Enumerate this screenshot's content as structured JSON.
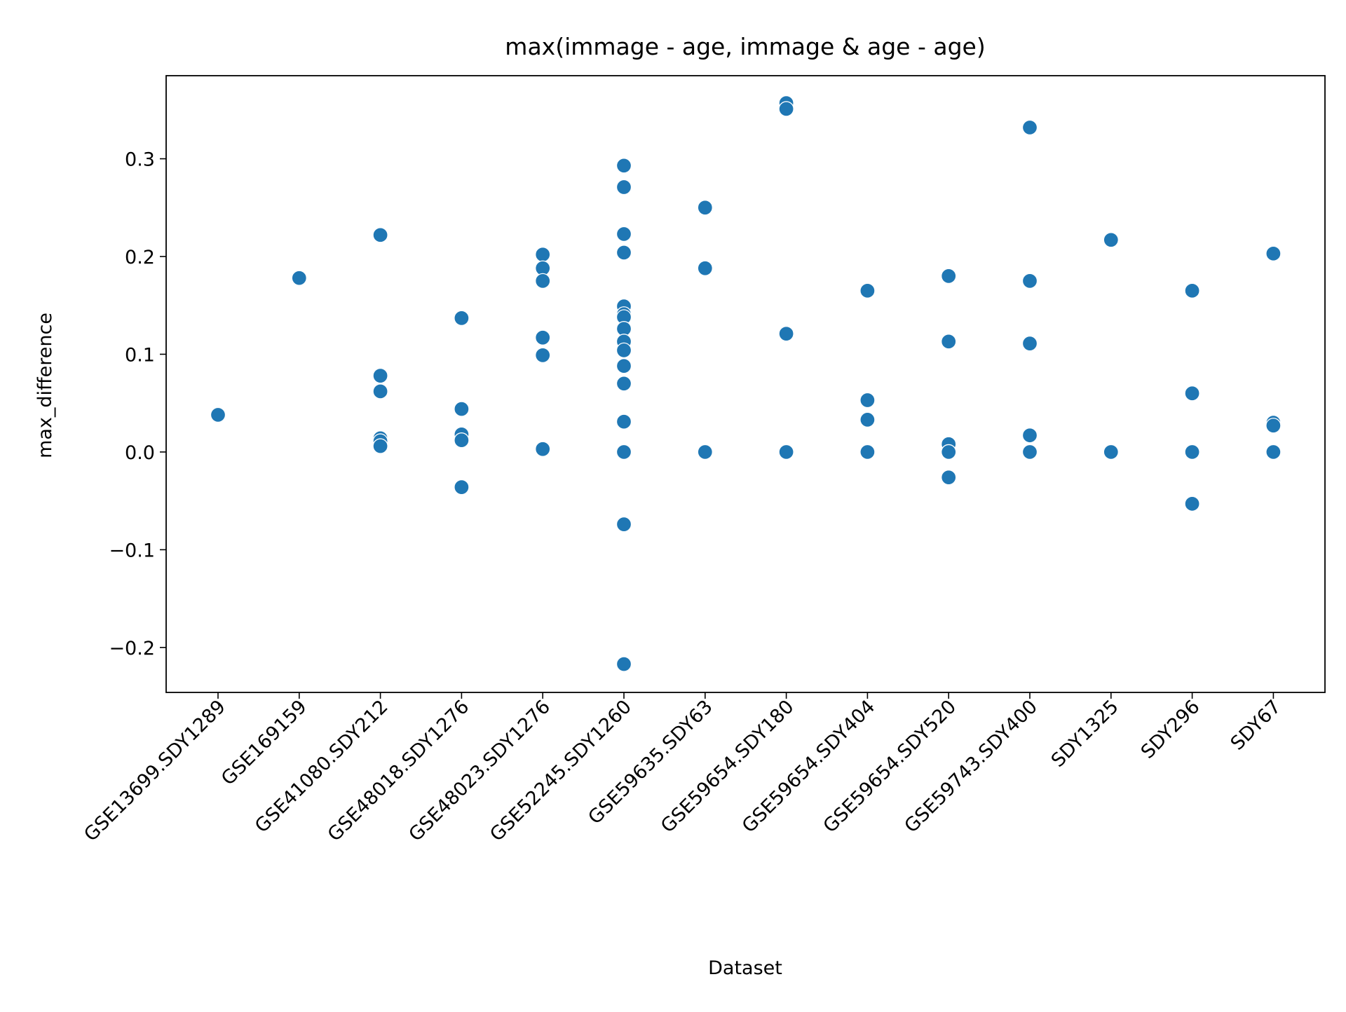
{
  "chart_data": {
    "type": "scatter",
    "title": "max(immage - age, immage & age - age)",
    "xlabel": "Dataset",
    "ylabel": "max_difference",
    "categories": [
      "GSE13699.SDY1289",
      "GSE169159",
      "GSE41080.SDY212",
      "GSE48018.SDY1276",
      "GSE48023.SDY1276",
      "GSE52245.SDY1260",
      "GSE59635.SDY63",
      "GSE59654.SDY180",
      "GSE59654.SDY404",
      "GSE59654.SDY520",
      "GSE59743.SDY400",
      "SDY1325",
      "SDY296",
      "SDY67"
    ],
    "y_ticks": [
      -0.2,
      -0.1,
      0.0,
      0.1,
      0.2,
      0.3
    ],
    "y_tick_labels": [
      "−0.2",
      "−0.1",
      "0.0",
      "0.1",
      "0.2",
      "0.3"
    ],
    "ylim": [
      -0.246,
      0.385
    ],
    "grid": false,
    "point_color": "#1f77b4",
    "points": [
      {
        "x": "GSE13699.SDY1289",
        "y": 0.038
      },
      {
        "x": "GSE169159",
        "y": 0.178
      },
      {
        "x": "GSE41080.SDY212",
        "y": 0.222
      },
      {
        "x": "GSE41080.SDY212",
        "y": 0.078
      },
      {
        "x": "GSE41080.SDY212",
        "y": 0.062
      },
      {
        "x": "GSE41080.SDY212",
        "y": 0.014
      },
      {
        "x": "GSE41080.SDY212",
        "y": 0.011
      },
      {
        "x": "GSE41080.SDY212",
        "y": 0.006
      },
      {
        "x": "GSE48018.SDY1276",
        "y": 0.137
      },
      {
        "x": "GSE48018.SDY1276",
        "y": 0.044
      },
      {
        "x": "GSE48018.SDY1276",
        "y": 0.018
      },
      {
        "x": "GSE48018.SDY1276",
        "y": 0.012
      },
      {
        "x": "GSE48018.SDY1276",
        "y": -0.036
      },
      {
        "x": "GSE48023.SDY1276",
        "y": 0.202
      },
      {
        "x": "GSE48023.SDY1276",
        "y": 0.188
      },
      {
        "x": "GSE48023.SDY1276",
        "y": 0.175
      },
      {
        "x": "GSE48023.SDY1276",
        "y": 0.117
      },
      {
        "x": "GSE48023.SDY1276",
        "y": 0.099
      },
      {
        "x": "GSE48023.SDY1276",
        "y": 0.003
      },
      {
        "x": "GSE52245.SDY1260",
        "y": 0.293
      },
      {
        "x": "GSE52245.SDY1260",
        "y": 0.271
      },
      {
        "x": "GSE52245.SDY1260",
        "y": 0.223
      },
      {
        "x": "GSE52245.SDY1260",
        "y": 0.204
      },
      {
        "x": "GSE52245.SDY1260",
        "y": 0.149
      },
      {
        "x": "GSE52245.SDY1260",
        "y": 0.141
      },
      {
        "x": "GSE52245.SDY1260",
        "y": 0.138
      },
      {
        "x": "GSE52245.SDY1260",
        "y": 0.126
      },
      {
        "x": "GSE52245.SDY1260",
        "y": 0.113
      },
      {
        "x": "GSE52245.SDY1260",
        "y": 0.104
      },
      {
        "x": "GSE52245.SDY1260",
        "y": 0.088
      },
      {
        "x": "GSE52245.SDY1260",
        "y": 0.07
      },
      {
        "x": "GSE52245.SDY1260",
        "y": 0.031
      },
      {
        "x": "GSE52245.SDY1260",
        "y": 0.0
      },
      {
        "x": "GSE52245.SDY1260",
        "y": -0.074
      },
      {
        "x": "GSE52245.SDY1260",
        "y": -0.217
      },
      {
        "x": "GSE59635.SDY63",
        "y": 0.25
      },
      {
        "x": "GSE59635.SDY63",
        "y": 0.188
      },
      {
        "x": "GSE59635.SDY63",
        "y": 0.0
      },
      {
        "x": "GSE59654.SDY180",
        "y": 0.357
      },
      {
        "x": "GSE59654.SDY180",
        "y": 0.351
      },
      {
        "x": "GSE59654.SDY180",
        "y": 0.121
      },
      {
        "x": "GSE59654.SDY180",
        "y": 0.0
      },
      {
        "x": "GSE59654.SDY404",
        "y": 0.165
      },
      {
        "x": "GSE59654.SDY404",
        "y": 0.053
      },
      {
        "x": "GSE59654.SDY404",
        "y": 0.033
      },
      {
        "x": "GSE59654.SDY404",
        "y": 0.0
      },
      {
        "x": "GSE59654.SDY520",
        "y": 0.18
      },
      {
        "x": "GSE59654.SDY520",
        "y": 0.113
      },
      {
        "x": "GSE59654.SDY520",
        "y": 0.008
      },
      {
        "x": "GSE59654.SDY520",
        "y": 0.0
      },
      {
        "x": "GSE59654.SDY520",
        "y": -0.026
      },
      {
        "x": "GSE59743.SDY400",
        "y": 0.332
      },
      {
        "x": "GSE59743.SDY400",
        "y": 0.175
      },
      {
        "x": "GSE59743.SDY400",
        "y": 0.111
      },
      {
        "x": "GSE59743.SDY400",
        "y": 0.017
      },
      {
        "x": "GSE59743.SDY400",
        "y": 0.0
      },
      {
        "x": "SDY1325",
        "y": 0.217
      },
      {
        "x": "SDY1325",
        "y": 0.0
      },
      {
        "x": "SDY296",
        "y": 0.165
      },
      {
        "x": "SDY296",
        "y": 0.06
      },
      {
        "x": "SDY296",
        "y": 0.0
      },
      {
        "x": "SDY296",
        "y": -0.053
      },
      {
        "x": "SDY67",
        "y": 0.203
      },
      {
        "x": "SDY67",
        "y": 0.03
      },
      {
        "x": "SDY67",
        "y": 0.027
      },
      {
        "x": "SDY67",
        "y": 0.0
      }
    ]
  }
}
